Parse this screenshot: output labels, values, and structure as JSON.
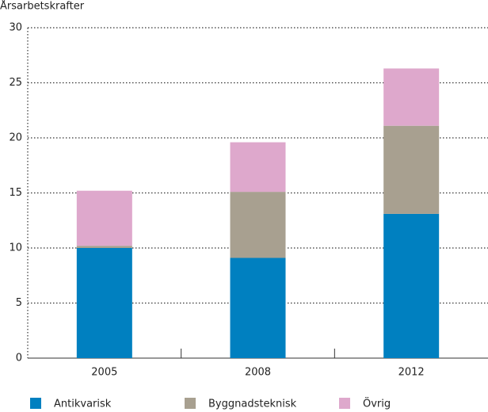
{
  "chart_data": {
    "type": "stacked_bar",
    "y_label": "Årsarbetskrafter",
    "categories": [
      "2005",
      "2008",
      "2012"
    ],
    "series": [
      {
        "name": "Antikvarisk",
        "color": "#0080c0",
        "values": [
          10,
          9.1,
          13.1
        ]
      },
      {
        "name": "Byggnadsteknisk",
        "color": "#a8a090",
        "values": [
          0.2,
          6.0,
          8.0
        ]
      },
      {
        "name": "Övrig",
        "color": "#dea8cc",
        "values": [
          5.0,
          4.5,
          5.2
        ]
      }
    ],
    "ylim": [
      0,
      30
    ],
    "yticks": [
      0,
      5,
      10,
      15,
      20,
      25,
      30
    ],
    "grid": true,
    "legend": "bottom"
  }
}
